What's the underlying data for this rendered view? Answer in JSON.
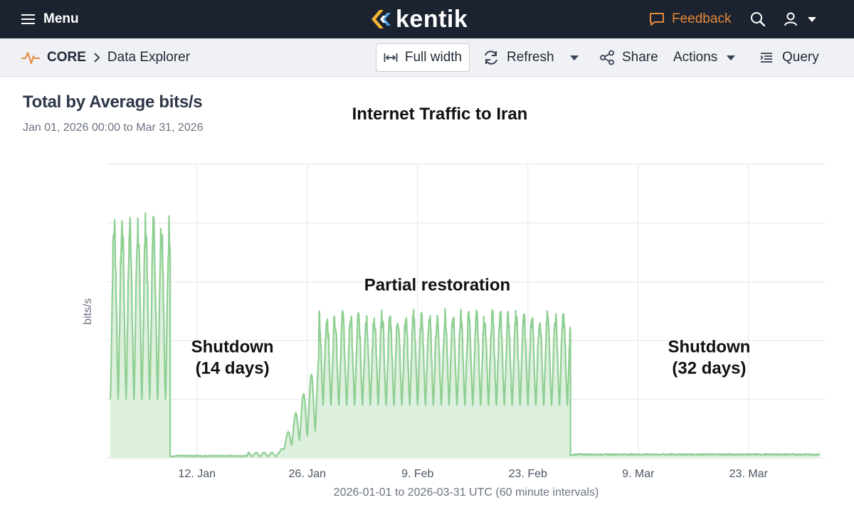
{
  "topbar": {
    "menu_label": "Menu",
    "logo_text": "kentik",
    "feedback_label": "Feedback",
    "accent_color": "#e8883a"
  },
  "subbar": {
    "crumb_root": "CORE",
    "crumb_page": "Data Explorer",
    "full_width_label": "Full width",
    "refresh_label": "Refresh",
    "share_label": "Share",
    "actions_label": "Actions",
    "query_label": "Query"
  },
  "panel": {
    "title": "Total by Average bits/s",
    "subtitle": "Jan 01, 2026 00:00 to Mar 31, 2026"
  },
  "chart_data": {
    "type": "area",
    "title": "Internet Traffic to Iran",
    "xlabel": "2026-01-01 to 2026-03-31 UTC (60 minute intervals)",
    "ylabel": "bits/s",
    "x_range_days": [
      0,
      90
    ],
    "y_range": [
      0,
      100
    ],
    "xticks": [
      {
        "day": 11,
        "label": "12. Jan"
      },
      {
        "day": 25,
        "label": "26. Jan"
      },
      {
        "day": 39,
        "label": "9. Feb"
      },
      {
        "day": 53,
        "label": "23. Feb"
      },
      {
        "day": 67,
        "label": "9. Mar"
      },
      {
        "day": 81,
        "label": "23. Mar"
      }
    ],
    "y_gridlines": [
      0,
      20,
      40,
      60,
      80,
      100
    ],
    "series": [
      {
        "name": "Total bits/s",
        "color": "#8fcf93",
        "fill": "#ddf0de",
        "segments": [
          {
            "from_day": 0,
            "to_day": 7.6,
            "pattern": "daily",
            "low": 20,
            "high": 85
          },
          {
            "from_day": 7.6,
            "to_day": 8.1,
            "pattern": "drop",
            "low": 0.5,
            "high": 0.5
          },
          {
            "from_day": 8.1,
            "to_day": 17.5,
            "pattern": "flat",
            "low": 0.5,
            "high": 0.5
          },
          {
            "from_day": 17.5,
            "to_day": 21.5,
            "pattern": "daily",
            "low": 0.5,
            "high": 2
          },
          {
            "from_day": 21.5,
            "to_day": 26.5,
            "pattern": "ramp",
            "low": 2,
            "high": 27
          },
          {
            "from_day": 26.5,
            "to_day": 58.4,
            "pattern": "daily",
            "low": 18,
            "high": 51
          },
          {
            "from_day": 58.4,
            "to_day": 58.9,
            "pattern": "drop",
            "low": 1,
            "high": 1
          },
          {
            "from_day": 58.9,
            "to_day": 90,
            "pattern": "flat",
            "low": 1,
            "high": 1
          }
        ]
      }
    ],
    "annotations": [
      {
        "lines": [
          "Shutdown",
          "(14 days)"
        ],
        "day": 15.5,
        "y": 36
      },
      {
        "lines": [
          "Partial restoration"
        ],
        "day": 41.5,
        "y": 57
      },
      {
        "lines": [
          "Shutdown",
          "(32 days)"
        ],
        "day": 76,
        "y": 36
      }
    ]
  }
}
